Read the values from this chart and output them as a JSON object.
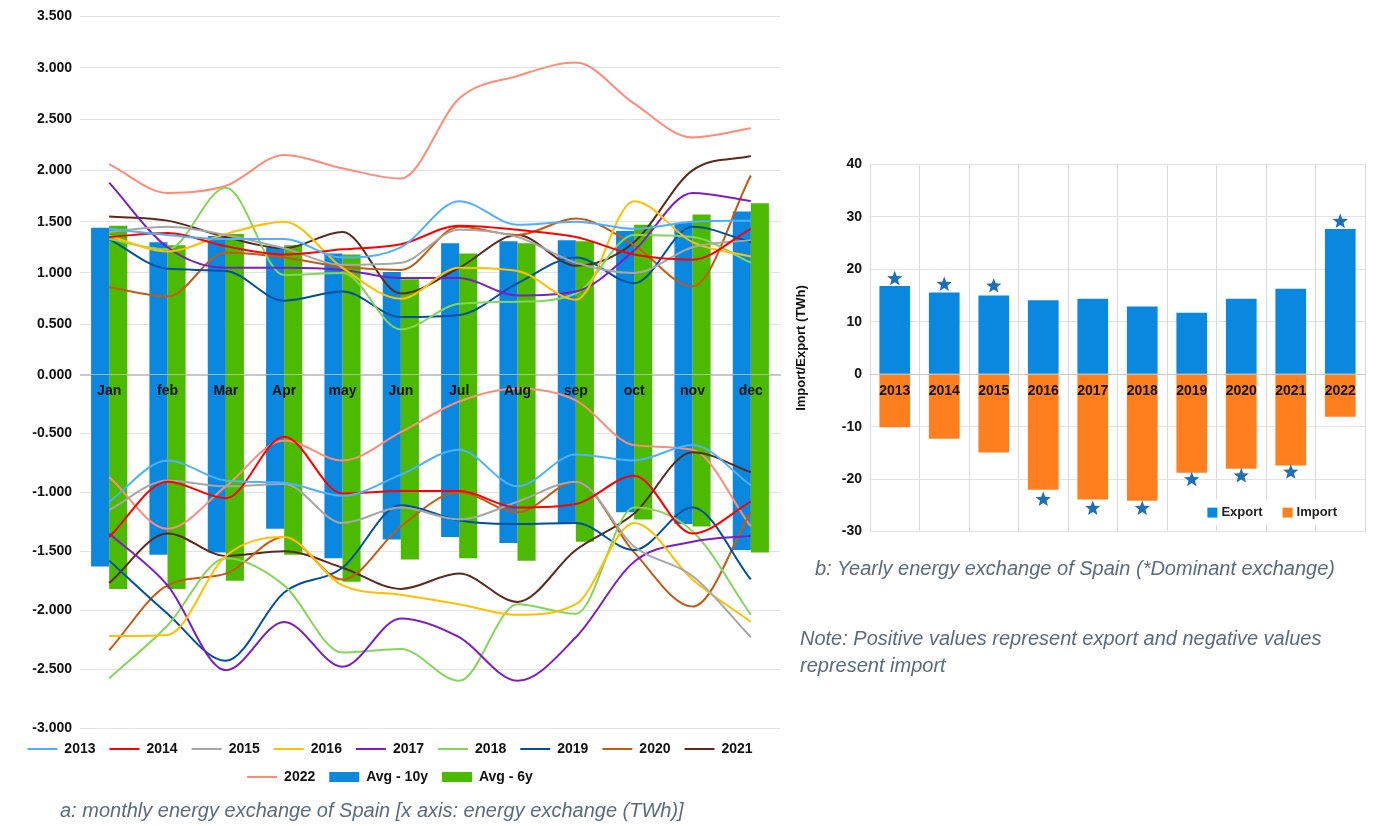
{
  "chart_data": [
    {
      "type": "bar",
      "categories": [
        null,
        null,
        null,
        null,
        null,
        null,
        null,
        null,
        null,
        null,
        null,
        null
      ],
      "tick_labels": "y",
      "grid": "y",
      "legend": false,
      "ylim": [
        0,
        3.5
      ],
      "yticks": [
        {
          "value": 0,
          "label": "0.000"
        },
        {
          "value": 0.5,
          "label": "0.500"
        },
        {
          "value": 1,
          "label": "1.000"
        },
        {
          "value": 1.5,
          "label": "1.500"
        },
        {
          "value": 2,
          "label": "2.000"
        },
        {
          "value": 2.5,
          "label": "2.500"
        },
        {
          "value": 3,
          "label": "3.000"
        },
        {
          "value": 3.5,
          "label": "3.500"
        }
      ],
      "series": [
        {
          "color": "#0a88e0",
          "values": [
            1.44,
            1.3,
            1.36,
            1.25,
            1.19,
            1.01,
            1.29,
            1.31,
            1.32,
            1.41,
            1.49,
            1.6
          ]
        },
        {
          "color": "#4cbb00",
          "values": [
            1.46,
            1.27,
            1.38,
            1.27,
            1.18,
            0.94,
            1.19,
            1.29,
            1.31,
            1.47,
            1.57,
            1.68
          ]
        },
        {
          "type": "line",
          "color": "#4fb0ff",
          "values": [
            1.43,
            1.37,
            1.33,
            1.33,
            1.15,
            1.25,
            1.7,
            1.47,
            1.5,
            1.43,
            1.5,
            1.51
          ]
        },
        {
          "type": "line",
          "color": "#ff0000",
          "values": [
            1.35,
            1.39,
            1.26,
            1.18,
            1.23,
            1.28,
            1.46,
            1.42,
            1.35,
            1.18,
            1.13,
            1.43
          ]
        },
        {
          "type": "line",
          "color": "#a6a6a6",
          "values": [
            1.4,
            1.45,
            1.37,
            1.24,
            1.08,
            1.1,
            1.42,
            1.35,
            1.1,
            1.0,
            1.25,
            1.32
          ]
        },
        {
          "type": "line",
          "color": "#ffc000",
          "values": [
            1.36,
            1.21,
            1.38,
            1.5,
            1.05,
            0.75,
            1.05,
            1.02,
            0.74,
            1.7,
            1.3,
            1.16
          ]
        },
        {
          "type": "line",
          "color": "#7b1fc4",
          "values": [
            1.88,
            1.25,
            1.05,
            1.05,
            1.03,
            0.95,
            0.95,
            0.78,
            0.82,
            1.22,
            1.78,
            1.7
          ]
        },
        {
          "type": "line",
          "color": "#84d65a",
          "values": [
            1.33,
            1.23,
            1.83,
            0.98,
            1.0,
            0.45,
            0.7,
            0.72,
            0.8,
            1.37,
            1.35,
            1.1
          ]
        },
        {
          "type": "line",
          "color": "#0050a0",
          "values": [
            1.33,
            1.04,
            1.02,
            0.73,
            0.82,
            0.57,
            0.59,
            0.9,
            1.15,
            0.9,
            1.45,
            1.3
          ]
        },
        {
          "type": "line",
          "color": "#c55a11",
          "values": [
            0.86,
            0.77,
            1.2,
            1.15,
            1.06,
            1.03,
            1.45,
            1.37,
            1.53,
            1.27,
            0.87,
            1.95
          ]
        },
        {
          "type": "line",
          "color": "#5a2a1a",
          "values": [
            1.55,
            1.51,
            1.35,
            1.24,
            1.4,
            0.8,
            1.05,
            1.37,
            1.07,
            1.3,
            2.0,
            2.14
          ]
        },
        {
          "type": "line",
          "color": "#ff8c7a",
          "values": [
            2.06,
            1.78,
            1.85,
            2.15,
            2.02,
            1.92,
            2.7,
            2.92,
            3.05,
            2.65,
            2.32,
            2.41
          ]
        }
      ]
    },
    {
      "type": "bar",
      "categories": [
        "Jan",
        "feb",
        "Mar",
        "Apr",
        "may",
        "Jun",
        "Jul",
        "Aug",
        "sep",
        "oct",
        "nov",
        "dec"
      ],
      "grid": "y",
      "legend": "bottom",
      "ylim": [
        -3,
        0
      ],
      "yticks": [
        {
          "value": -3,
          "label": "-3.000"
        },
        {
          "value": -2.5,
          "label": "-2.500"
        },
        {
          "value": -2,
          "label": "-2.000"
        },
        {
          "value": -1.5,
          "label": "-1.500"
        },
        {
          "value": -1,
          "label": "-1.000"
        },
        {
          "value": -0.5,
          "label": "-0.500"
        }
      ],
      "annotations": [
        "a: monthly energy exchange of Spain [x axis: energy exchange (TWh)]"
      ],
      "series": [
        {
          "name": "Avg - 10y",
          "color": "#0a88e0",
          "values": [
            -1.63,
            -1.53,
            -1.51,
            -1.31,
            -1.56,
            -1.4,
            -1.38,
            -1.43,
            -1.27,
            -1.17,
            -1.27,
            -1.49
          ]
        },
        {
          "name": "Avg - 6y",
          "color": "#4cbb00",
          "values": [
            -1.82,
            -1.82,
            -1.75,
            -1.53,
            -1.76,
            -1.57,
            -1.56,
            -1.58,
            -1.42,
            -1.23,
            -1.29,
            -1.51
          ]
        },
        {
          "name": "2013",
          "type": "line",
          "color": "#4fb0ff",
          "values": [
            -1.08,
            -0.73,
            -0.9,
            -0.92,
            -1.03,
            -0.85,
            -0.64,
            -0.95,
            -0.68,
            -0.73,
            -0.6,
            -0.94
          ]
        },
        {
          "name": "2014",
          "type": "line",
          "color": "#ff0000",
          "values": [
            -1.38,
            -0.91,
            -1.05,
            -0.53,
            -1.01,
            -0.99,
            -0.99,
            -1.13,
            -1.1,
            -0.86,
            -1.35,
            -1.08
          ]
        },
        {
          "name": "2015",
          "type": "line",
          "color": "#a6a6a6",
          "values": [
            -1.15,
            -0.9,
            -0.95,
            -0.93,
            -1.26,
            -1.13,
            -1.23,
            -1.08,
            -0.91,
            -1.46,
            -1.71,
            -2.23
          ]
        },
        {
          "name": "2016",
          "type": "line",
          "color": "#ffc000",
          "values": [
            -2.22,
            -2.21,
            -1.54,
            -1.38,
            -1.79,
            -1.87,
            -1.95,
            -2.04,
            -1.95,
            -1.26,
            -1.74,
            -2.1
          ]
        },
        {
          "name": "2017",
          "type": "line",
          "color": "#7b1fc4",
          "values": [
            -1.35,
            -1.79,
            -2.51,
            -2.1,
            -2.48,
            -2.07,
            -2.23,
            -2.6,
            -2.23,
            -1.59,
            -1.42,
            -1.37
          ]
        },
        {
          "name": "2018",
          "type": "line",
          "color": "#84d65a",
          "values": [
            -2.58,
            -2.13,
            -1.56,
            -1.79,
            -2.36,
            -2.33,
            -2.6,
            -1.95,
            -2.03,
            -1.13,
            -1.33,
            -2.04
          ]
        },
        {
          "name": "2019",
          "type": "line",
          "color": "#0050a0",
          "values": [
            -1.58,
            -2.03,
            -2.43,
            -1.85,
            -1.64,
            -1.11,
            -1.24,
            -1.27,
            -1.26,
            -1.49,
            -1.13,
            -1.74
          ]
        },
        {
          "name": "2020",
          "type": "line",
          "color": "#c55a11",
          "values": [
            -2.34,
            -1.79,
            -1.69,
            -1.38,
            -1.74,
            -1.29,
            -1.0,
            -1.17,
            -0.91,
            -1.51,
            -1.97,
            -1.17
          ]
        },
        {
          "name": "2021",
          "type": "line",
          "color": "#5a2a1a",
          "values": [
            -1.77,
            -1.35,
            -1.54,
            -1.5,
            -1.64,
            -1.82,
            -1.69,
            -1.93,
            -1.49,
            -1.18,
            -0.66,
            -0.83
          ]
        },
        {
          "name": "2022",
          "type": "line",
          "color": "#ff8c7a",
          "values": [
            -0.87,
            -1.31,
            -0.95,
            -0.56,
            -0.73,
            -0.49,
            -0.23,
            -0.12,
            -0.22,
            -0.6,
            -0.64,
            -1.29
          ]
        }
      ]
    },
    {
      "type": "bar",
      "stacked": true,
      "categories": [
        "2013",
        "2014",
        "2015",
        "2016",
        "2017",
        "2018",
        "2019",
        "2020",
        "2021",
        "2022"
      ],
      "ylabel": "Import/Export (TWh)",
      "grid": true,
      "legend": "bottom right",
      "marker": "star",
      "ylim": [
        -30,
        40
      ],
      "yticks": [
        -30,
        -20,
        -10,
        0,
        10,
        20,
        30,
        40
      ],
      "annotations": [
        "b: Yearly energy exchange of Spain (*Dominant exchange)",
        "Note: Positive values represent export and negative values represent import"
      ],
      "series": [
        {
          "name": "Export",
          "color": "#0a88e0",
          "values": [
            16.8,
            15.6,
            15.0,
            14.1,
            14.4,
            12.9,
            11.7,
            14.4,
            16.3,
            27.7
          ]
        },
        {
          "name": "Import",
          "color": "#ff7f1e",
          "values": [
            -10.1,
            -12.3,
            -14.9,
            -22.0,
            -23.9,
            -24.1,
            -18.8,
            -18.0,
            -17.4,
            -8.1
          ]
        },
        {
          "type": "scatter",
          "color": "#1f6fb8",
          "values": [
            18.2,
            17.1,
            16.8,
            -23.9,
            -25.6,
            -25.6,
            -20.1,
            -19.4,
            -18.7,
            29.1
          ]
        }
      ]
    }
  ]
}
